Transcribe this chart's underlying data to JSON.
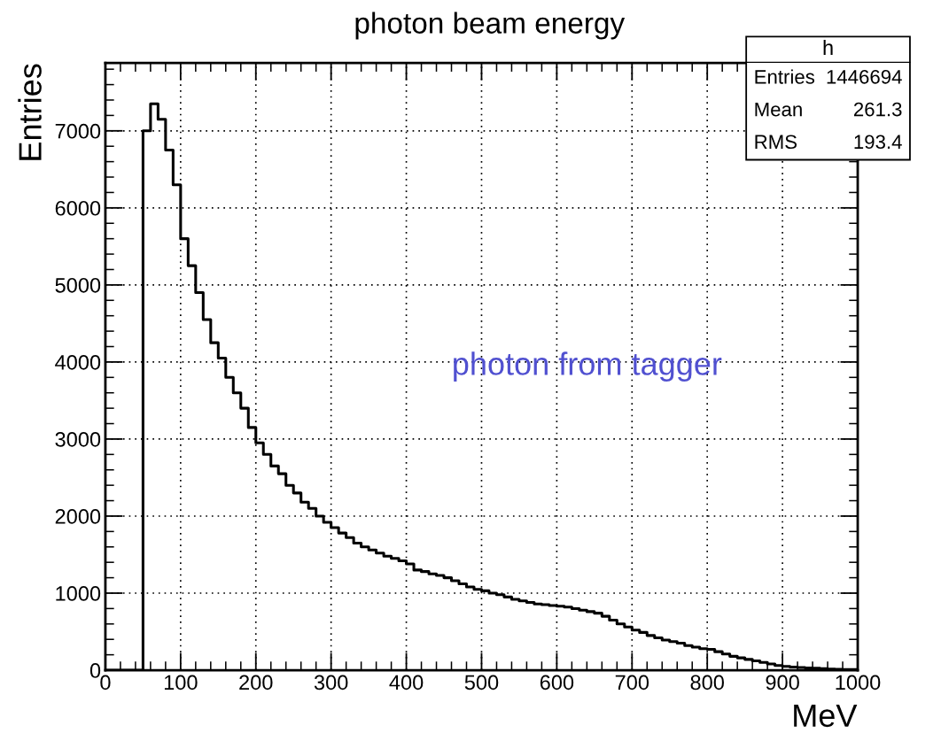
{
  "chart_data": {
    "type": "histogram",
    "title": "photon beam energy",
    "xlabel": "MeV",
    "ylabel": "Entries",
    "bins": [
      0,
      10,
      20,
      30,
      40,
      50,
      60,
      70,
      80,
      90,
      100,
      110,
      120,
      130,
      140,
      150,
      160,
      170,
      180,
      190,
      200,
      210,
      220,
      230,
      240,
      250,
      260,
      270,
      280,
      290,
      300,
      310,
      320,
      330,
      340,
      350,
      360,
      370,
      380,
      390,
      400,
      410,
      420,
      430,
      440,
      450,
      460,
      470,
      480,
      490,
      500,
      510,
      520,
      530,
      540,
      550,
      560,
      570,
      580,
      590,
      600,
      610,
      620,
      630,
      640,
      650,
      660,
      670,
      680,
      690,
      700,
      710,
      720,
      730,
      740,
      750,
      760,
      770,
      780,
      790,
      800,
      810,
      820,
      830,
      840,
      850,
      860,
      870,
      880,
      890,
      900,
      910,
      920,
      930,
      940,
      950,
      960,
      970,
      980,
      990,
      1000
    ],
    "values": [
      0,
      0,
      0,
      0,
      0,
      7000,
      7350,
      7150,
      6750,
      6300,
      5600,
      5250,
      4900,
      4550,
      4250,
      4050,
      3800,
      3600,
      3400,
      3150,
      2950,
      2800,
      2650,
      2550,
      2400,
      2300,
      2180,
      2100,
      2000,
      1920,
      1850,
      1780,
      1720,
      1650,
      1600,
      1560,
      1520,
      1480,
      1450,
      1420,
      1380,
      1300,
      1280,
      1250,
      1230,
      1200,
      1160,
      1120,
      1080,
      1050,
      1030,
      1000,
      980,
      950,
      920,
      900,
      880,
      860,
      850,
      840,
      830,
      820,
      800,
      780,
      760,
      740,
      700,
      650,
      600,
      560,
      520,
      490,
      450,
      420,
      390,
      370,
      350,
      320,
      300,
      280,
      270,
      240,
      210,
      180,
      160,
      140,
      120,
      100,
      80,
      60,
      50,
      40,
      35,
      30,
      25,
      20,
      15,
      12,
      10,
      8
    ],
    "color": "#000000",
    "xlim": [
      0,
      1000
    ],
    "ylim": [
      0,
      7880
    ],
    "xticks": [
      0,
      100,
      200,
      300,
      400,
      500,
      600,
      700,
      800,
      900,
      1000
    ],
    "yticks": [
      0,
      1000,
      2000,
      3000,
      4000,
      5000,
      6000,
      7000
    ],
    "grid": true,
    "annotations": [
      "h",
      "Entries",
      "1446694",
      "Mean",
      "261.3",
      "RMS",
      "193.4",
      "photon from tagger"
    ]
  }
}
